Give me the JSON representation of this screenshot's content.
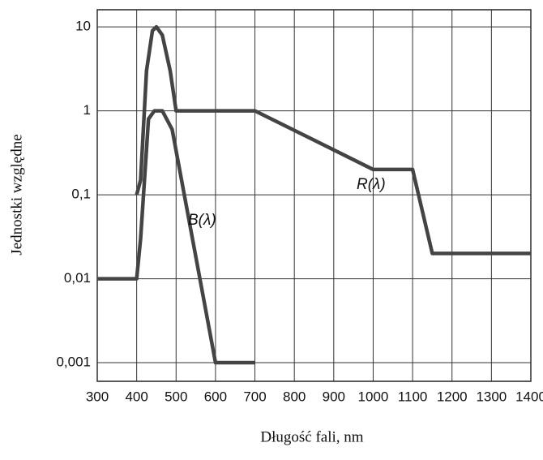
{
  "chart_data": {
    "type": "line",
    "xlabel": "Długość fali, nm",
    "ylabel": "Jednostki względne",
    "yscale": "log",
    "grid": true,
    "xlim": [
      300,
      1400
    ],
    "xticks": [
      300,
      400,
      500,
      600,
      700,
      800,
      900,
      1000,
      1100,
      1200,
      1300,
      1400
    ],
    "ylim": [
      0.0006,
      16
    ],
    "yticks": [
      {
        "value": 0.001,
        "label": "0,001"
      },
      {
        "value": 0.01,
        "label": "0,01"
      },
      {
        "value": 0.1,
        "label": "0,1"
      },
      1,
      10
    ],
    "series": [
      {
        "name": "R(λ)",
        "color": "#444444",
        "x": [
          400,
          410,
          425,
          440,
          450,
          465,
          485,
          500,
          700,
          1000,
          1100,
          1150,
          1400
        ],
        "values": [
          0.1,
          0.15,
          3,
          9,
          10,
          8,
          3,
          1,
          1,
          0.2,
          0.2,
          0.02,
          0.02
        ]
      },
      {
        "name": "B(λ)",
        "color": "#444444",
        "x": [
          300,
          400,
          410,
          430,
          445,
          465,
          490,
          600,
          700
        ],
        "values": [
          0.01,
          0.01,
          0.03,
          0.8,
          1,
          1,
          0.6,
          0.001,
          0.001
        ]
      }
    ]
  }
}
